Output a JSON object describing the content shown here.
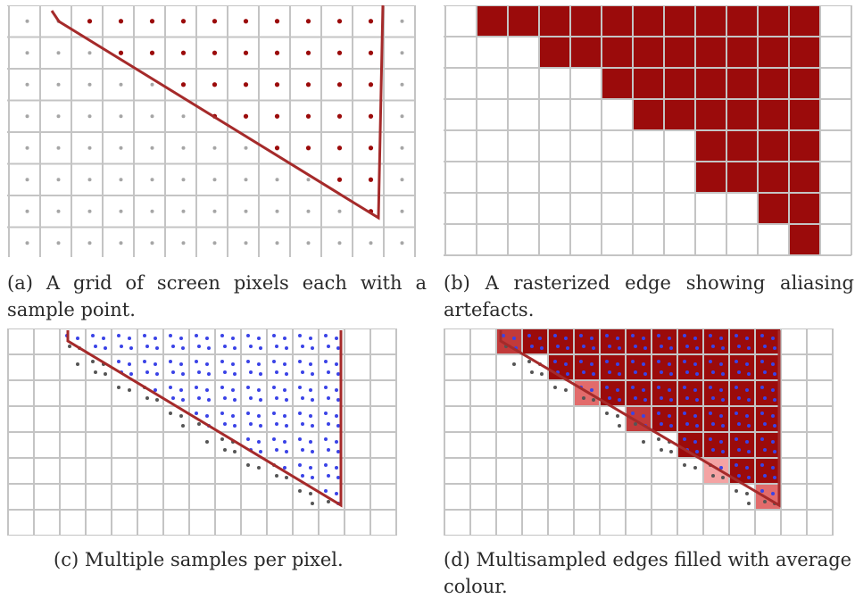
{
  "captions": {
    "a": "(a) A grid of screen pixels each with a sample point.",
    "b": "(b) A rasterized edge showing aliasing artefacts.",
    "c": "(c) Multiple samples per pixel.",
    "d": "(d) Multisampled edges filled with average colour."
  },
  "colors": {
    "grid": "#c4c4c4",
    "edge": "#a52a2a",
    "fill": "#9b0b0b",
    "sample_inside_a": "#9b0b0b",
    "sample_outside": "#a6a6a6",
    "sample_inside_multi": "#3a43e6",
    "sample_outside_multi": "#555555",
    "partial_light": "#f4a3a3",
    "partial_mid": "#e26b6b",
    "partial_dark": "#c23a3a"
  }
}
